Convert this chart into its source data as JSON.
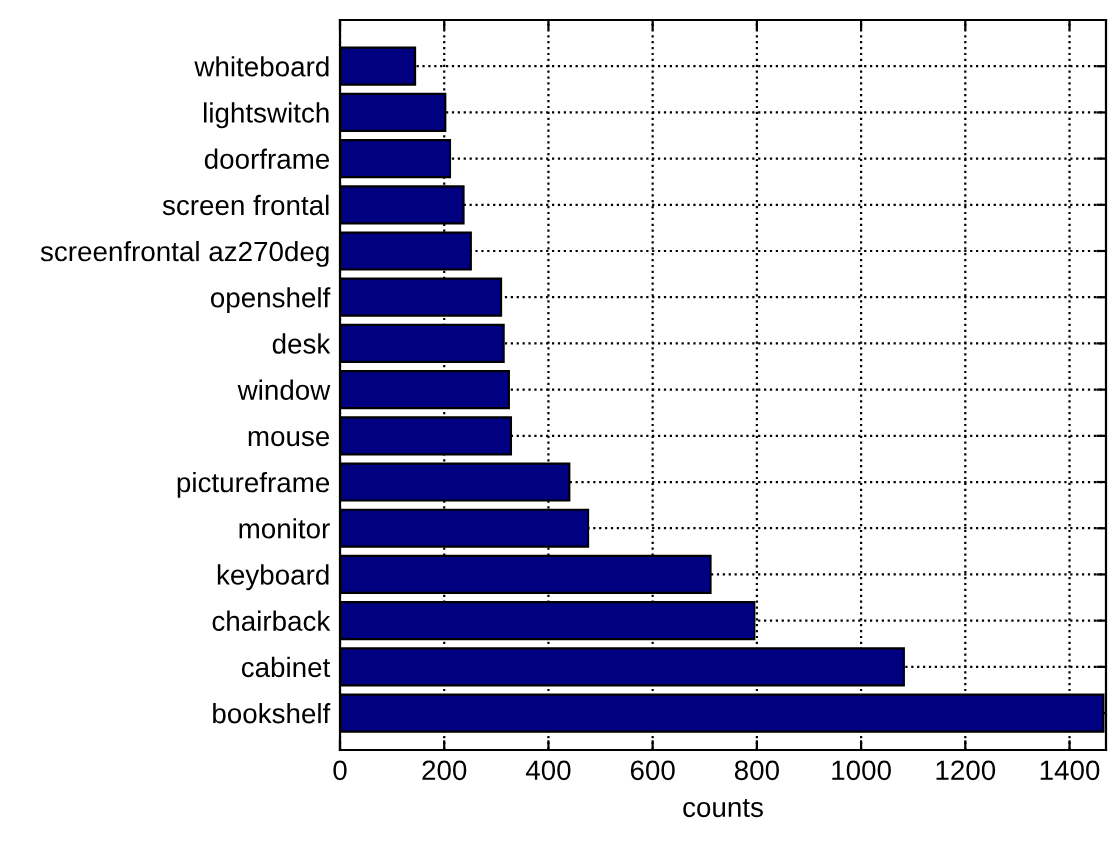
{
  "chart_data": {
    "type": "bar",
    "orientation": "horizontal",
    "xlabel": "counts",
    "categories": [
      "whiteboard",
      "lightswitch",
      "doorframe",
      "screen frontal",
      "screenfrontal az270deg",
      "openshelf",
      "desk",
      "window",
      "mouse",
      "pictureframe",
      "monitor",
      "keyboard",
      "chairback",
      "cabinet",
      "bookshelf"
    ],
    "values": [
      144,
      202,
      211,
      237,
      251,
      309,
      314,
      324,
      328,
      440,
      476,
      711,
      795,
      1082,
      1465
    ],
    "color": "#000080",
    "xlim": [
      0,
      1470
    ],
    "xticks": [
      0,
      200,
      400,
      600,
      800,
      1000,
      1200,
      1400
    ],
    "grid": true,
    "line_style": "dotted"
  }
}
